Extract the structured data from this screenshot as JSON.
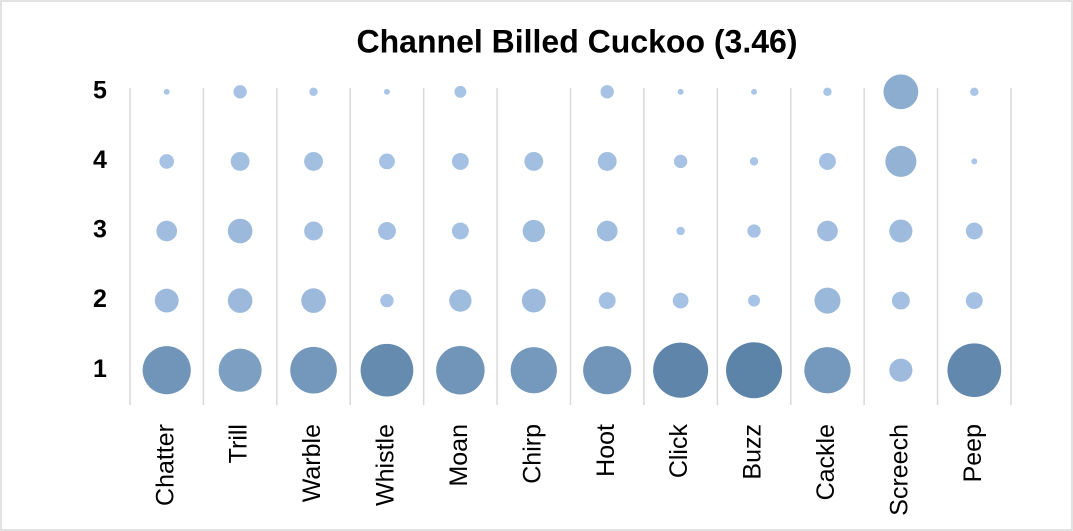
{
  "chart_data": {
    "type": "bubble",
    "title": "Channel Billed Cuckoo (3.46)",
    "categories": [
      "Chatter",
      "Trill",
      "Warble",
      "Whistle",
      "Moan",
      "Chirp",
      "Hoot",
      "Click",
      "Buzz",
      "Cackle",
      "Screech",
      "Peep"
    ],
    "ylim": [
      0.5,
      5.5
    ],
    "yticks": [
      1,
      2,
      3,
      4,
      5
    ],
    "values": [
      [
        65,
        16,
        12,
        6,
        1
      ],
      [
        52,
        17,
        17,
        10,
        5
      ],
      [
        61,
        17,
        10,
        10,
        2
      ],
      [
        78,
        5,
        9,
        7,
        1
      ],
      [
        66,
        14,
        8,
        8,
        4
      ],
      [
        60,
        16,
        14,
        10,
        0
      ],
      [
        65,
        8,
        12,
        10,
        5
      ],
      [
        85,
        7,
        2,
        5,
        1
      ],
      [
        88,
        4,
        5,
        2,
        1
      ],
      [
        60,
        19,
        12,
        8,
        2
      ],
      [
        15,
        9,
        15,
        27,
        34
      ],
      [
        81,
        8,
        8,
        1,
        2
      ]
    ],
    "colors": [
      "#abc6e8",
      "#5c84a8"
    ]
  }
}
